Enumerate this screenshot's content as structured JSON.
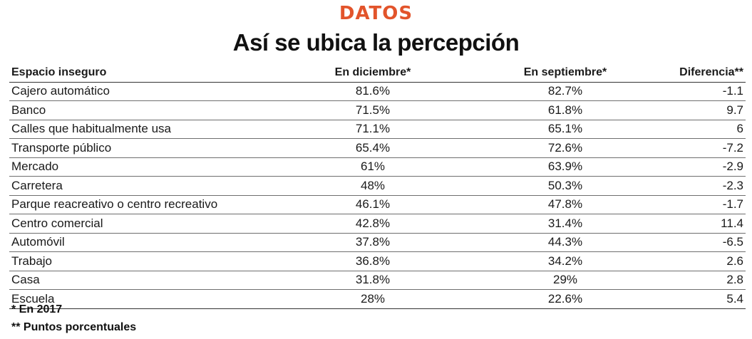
{
  "kicker": "DATOS",
  "title": "Así se ubica la percepción",
  "columns": [
    "Espacio inseguro",
    "En diciembre*",
    "En septiembre*",
    "Diferencia**"
  ],
  "rows": [
    {
      "espacio": "Cajero automático",
      "diciembre": "81.6%",
      "septiembre": "82.7%",
      "diferencia": "-1.1"
    },
    {
      "espacio": "Banco",
      "diciembre": "71.5%",
      "septiembre": "61.8%",
      "diferencia": "9.7"
    },
    {
      "espacio": "Calles que habitualmente usa",
      "diciembre": "71.1%",
      "septiembre": "65.1%",
      "diferencia": "6"
    },
    {
      "espacio": "Transporte público",
      "diciembre": "65.4%",
      "septiembre": "72.6%",
      "diferencia": "-7.2"
    },
    {
      "espacio": "Mercado",
      "diciembre": "61%",
      "septiembre": "63.9%",
      "diferencia": "-2.9"
    },
    {
      "espacio": "Carretera",
      "diciembre": "48%",
      "septiembre": "50.3%",
      "diferencia": "-2.3"
    },
    {
      "espacio": "Parque reacreativo o centro recreativo",
      "diciembre": "46.1%",
      "septiembre": "47.8%",
      "diferencia": "-1.7"
    },
    {
      "espacio": "Centro comercial",
      "diciembre": "42.8%",
      "septiembre": "31.4%",
      "diferencia": "11.4"
    },
    {
      "espacio": "Automóvil",
      "diciembre": "37.8%",
      "septiembre": "44.3%",
      "diferencia": "-6.5"
    },
    {
      "espacio": "Trabajo",
      "diciembre": "36.8%",
      "septiembre": "34.2%",
      "diferencia": "2.6"
    },
    {
      "espacio": "Casa",
      "diciembre": "31.8%",
      "septiembre": "29%",
      "diferencia": "2.8"
    },
    {
      "espacio": "Escuela",
      "diciembre": "28%",
      "septiembre": "22.6%",
      "diferencia": "5.4"
    }
  ],
  "notes": [
    "* En 2017",
    "** Puntos porcentuales"
  ],
  "colors": {
    "accent": "#e2542b",
    "text": "#111111",
    "rule": "#6e6e6e"
  }
}
